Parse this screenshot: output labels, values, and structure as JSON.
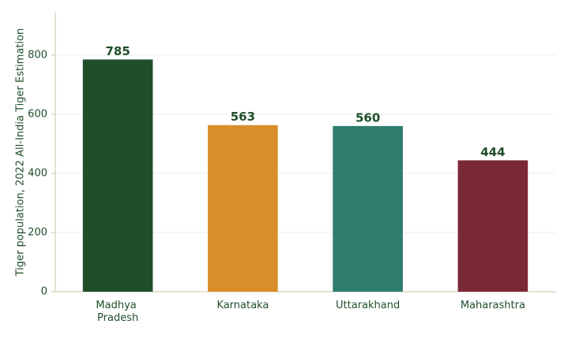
{
  "chart_data": {
    "type": "bar",
    "ylabel": "Tiger population, 2022 All-India Tiger Estimation",
    "categories": [
      "Madhya Pradesh",
      "Karnataka",
      "Uttarakhand",
      "Maharashtra"
    ],
    "values": [
      785,
      563,
      560,
      444
    ],
    "colors": [
      "#1f4e2b",
      "#d98e2b",
      "#2e7d6e",
      "#7b2836"
    ],
    "ylim": [
      0,
      946
    ],
    "yticks": [
      0,
      200,
      400,
      600,
      800
    ],
    "grid": true
  }
}
